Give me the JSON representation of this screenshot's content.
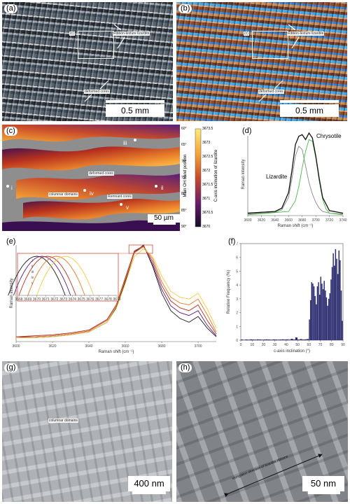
{
  "panels": {
    "a": {
      "label": "(a)",
      "inset": "(c)",
      "annotations": [
        "Ribbon-texture lizardite",
        "deformed cores"
      ],
      "scalebar": "0.5 mm"
    },
    "b": {
      "label": "(b)",
      "inset": "(c)",
      "annotations": [
        "Ribbon-texture lizardite",
        "deformed cores"
      ],
      "scalebar": "0.5 mm"
    },
    "c": {
      "label": "(c)",
      "points": [
        "i",
        "ii",
        "iii",
        "iv",
        "v"
      ],
      "annotations": [
        "deformed cores",
        "columnar domains",
        "Remnant cores"
      ],
      "scalebar": "50 µm",
      "colorbar": {
        "left_label": "Main OH band position",
        "right_label": "C-axis inclination of lizardite",
        "left_ticks": [
          "3673.5",
          "3673",
          "3672.5",
          "3672",
          "3671.5",
          "3671",
          "3670.5",
          "3670"
        ],
        "right_ticks": [
          "60°",
          "65°",
          "70°",
          "75°",
          "80°",
          "85°",
          "90°"
        ]
      }
    },
    "d": {
      "label": "(d)"
    },
    "e": {
      "label": "(e)"
    },
    "f": {
      "label": "(f)"
    },
    "g": {
      "label": "(g)",
      "annotations": [
        "columnar domains"
      ],
      "scalebar": "400 nm"
    },
    "h": {
      "label": "(h)",
      "annotations": [
        "elongation direction of lizardite ribbons"
      ],
      "scalebar": "50 nm"
    }
  },
  "colors": {
    "lizardite": "#111111",
    "chrysotile": "#4fb84a",
    "thin": "#888888",
    "histogram": "#2a2a6e"
  },
  "chart_data": [
    {
      "panel": "d",
      "type": "line",
      "xlabel": "Raman shift (cm⁻¹)",
      "ylabel": "Raman intensity",
      "xlim": [
        3600,
        3740
      ],
      "ticks": [
        3600,
        3620,
        3640,
        3660,
        3680,
        3700,
        3720,
        3740
      ],
      "series": [
        {
          "name": "Lizardite",
          "color": "#888888",
          "x": [
            3600,
            3640,
            3650,
            3660,
            3665,
            3670,
            3675,
            3680,
            3685,
            3690,
            3695,
            3700,
            3705,
            3710,
            3720,
            3740
          ],
          "y": [
            0.02,
            0.04,
            0.07,
            0.22,
            0.45,
            0.72,
            0.84,
            0.8,
            0.6,
            0.4,
            0.26,
            0.16,
            0.09,
            0.05,
            0.03,
            0.02
          ]
        },
        {
          "name": "Chrysotile",
          "color": "#4fb84a",
          "x": [
            3600,
            3660,
            3670,
            3675,
            3680,
            3685,
            3690,
            3695,
            3700,
            3705,
            3710,
            3715,
            3720,
            3740
          ],
          "y": [
            0.01,
            0.05,
            0.18,
            0.35,
            0.58,
            0.78,
            0.92,
            0.9,
            0.7,
            0.42,
            0.2,
            0.08,
            0.03,
            0.01
          ]
        },
        {
          "name": "",
          "color": "#111111",
          "x": [
            3600,
            3640,
            3650,
            3660,
            3665,
            3670,
            3675,
            3680,
            3685,
            3690,
            3695,
            3700,
            3705,
            3710,
            3720,
            3740
          ],
          "y": [
            0.03,
            0.05,
            0.09,
            0.28,
            0.55,
            0.86,
            0.96,
            0.98,
            0.92,
            1.0,
            0.94,
            0.72,
            0.45,
            0.22,
            0.06,
            0.03
          ]
        }
      ]
    },
    {
      "panel": "e",
      "type": "line",
      "xlabel": "Raman shift (cm⁻¹)",
      "ylabel": "Raman intensity",
      "xlim": [
        3600,
        3710
      ],
      "ticks": [
        3600,
        3620,
        3640,
        3660,
        3680,
        3700
      ],
      "inset": {
        "xlim": [
          3668,
          3679
        ],
        "ticks": [
          3668,
          3669,
          3670,
          3671,
          3672,
          3673,
          3674,
          3675,
          3676,
          3677,
          3678,
          3679
        ],
        "labels": [
          "i",
          "ii",
          "iii",
          "iv",
          "v"
        ],
        "peaks": [
          3670.0,
          3670.6,
          3671.2,
          3672.2,
          3673.2
        ]
      },
      "series": [
        {
          "name": "i",
          "color": "#1a1a1a",
          "x": [
            3600,
            3610,
            3620,
            3630,
            3640,
            3650,
            3655,
            3660,
            3665,
            3670,
            3675,
            3680,
            3685,
            3690,
            3695,
            3700,
            3705,
            3710
          ],
          "y": [
            0.04,
            0.04,
            0.05,
            0.07,
            0.1,
            0.2,
            0.35,
            0.62,
            0.92,
            1.0,
            0.78,
            0.5,
            0.32,
            0.24,
            0.2,
            0.26,
            0.14,
            0.05
          ]
        },
        {
          "name": "ii",
          "color": "#5a1e7a",
          "x": [
            3600,
            3610,
            3620,
            3630,
            3640,
            3650,
            3655,
            3660,
            3665,
            3670,
            3675,
            3680,
            3685,
            3690,
            3695,
            3700,
            3705,
            3710
          ],
          "y": [
            0.05,
            0.05,
            0.06,
            0.08,
            0.11,
            0.22,
            0.37,
            0.64,
            0.93,
            0.99,
            0.8,
            0.54,
            0.37,
            0.3,
            0.27,
            0.32,
            0.17,
            0.06
          ]
        },
        {
          "name": "iii",
          "color": "#b8321e",
          "x": [
            3600,
            3610,
            3620,
            3630,
            3640,
            3650,
            3655,
            3660,
            3665,
            3670,
            3675,
            3680,
            3685,
            3690,
            3695,
            3700,
            3705,
            3710
          ],
          "y": [
            0.05,
            0.06,
            0.07,
            0.09,
            0.12,
            0.23,
            0.38,
            0.66,
            0.94,
            0.99,
            0.83,
            0.58,
            0.42,
            0.35,
            0.32,
            0.38,
            0.22,
            0.08
          ]
        },
        {
          "name": "iv",
          "color": "#e07a2a",
          "x": [
            3600,
            3610,
            3620,
            3630,
            3640,
            3650,
            3655,
            3660,
            3665,
            3670,
            3675,
            3680,
            3685,
            3690,
            3695,
            3700,
            3705,
            3710
          ],
          "y": [
            0.04,
            0.05,
            0.06,
            0.08,
            0.11,
            0.22,
            0.37,
            0.64,
            0.92,
            0.98,
            0.86,
            0.62,
            0.46,
            0.4,
            0.38,
            0.44,
            0.28,
            0.1
          ]
        },
        {
          "name": "v",
          "color": "#f2c84a",
          "x": [
            3600,
            3610,
            3620,
            3630,
            3640,
            3650,
            3655,
            3660,
            3665,
            3670,
            3675,
            3680,
            3685,
            3690,
            3695,
            3700,
            3705,
            3710
          ],
          "y": [
            0.04,
            0.04,
            0.05,
            0.07,
            0.1,
            0.2,
            0.34,
            0.6,
            0.88,
            0.96,
            0.88,
            0.68,
            0.52,
            0.46,
            0.44,
            0.5,
            0.34,
            0.14
          ]
        }
      ]
    },
    {
      "panel": "f",
      "type": "bar",
      "xlabel": "c-axis inclination (°)",
      "ylabel": "Relative Frequency (%)",
      "xlim": [
        0,
        90
      ],
      "ylim": [
        0,
        7
      ],
      "xticks": [
        0,
        10,
        20,
        30,
        40,
        50,
        60,
        70,
        80,
        90
      ],
      "yticks": [
        0,
        1,
        2,
        3,
        4,
        5,
        6,
        7
      ],
      "x": [
        1,
        3,
        5,
        7,
        9,
        11,
        13,
        15,
        17,
        19,
        21,
        23,
        25,
        27,
        29,
        31,
        33,
        35,
        37,
        39,
        41,
        43,
        45,
        47,
        49,
        51,
        53,
        55,
        57,
        59,
        60.5,
        61.5,
        62.5,
        63.5,
        64.5,
        65.5,
        66.5,
        67.5,
        68.5,
        69.5,
        70.5,
        71.5,
        72.5,
        73.5,
        74.5,
        75.5,
        76.5,
        77.5,
        78.5,
        79.5,
        80.5,
        81.5,
        82.5,
        83.5,
        84.5,
        85.5,
        86.5,
        87.5,
        88.5,
        89.5
      ],
      "values": [
        0.05,
        0.03,
        0.05,
        0.04,
        0.06,
        0.05,
        0.04,
        0.06,
        0.05,
        0.04,
        0.05,
        0.06,
        0.05,
        0.04,
        0.06,
        0.05,
        0.04,
        0.05,
        0.06,
        0.05,
        0.06,
        0.04,
        0.1,
        0.05,
        0.2,
        0.05,
        0.08,
        0.05,
        0.06,
        0.08,
        1.5,
        2.9,
        4.2,
        4.1,
        3.9,
        3.2,
        2.6,
        3.9,
        4.2,
        3.3,
        4.6,
        4.1,
        3.7,
        4.3,
        3.6,
        3.1,
        2.5,
        3.0,
        3.4,
        4.4,
        5.3,
        6.3,
        5.4,
        6.6,
        5.9,
        4.8,
        6.5,
        5.8,
        3.6,
        1.4
      ]
    }
  ]
}
